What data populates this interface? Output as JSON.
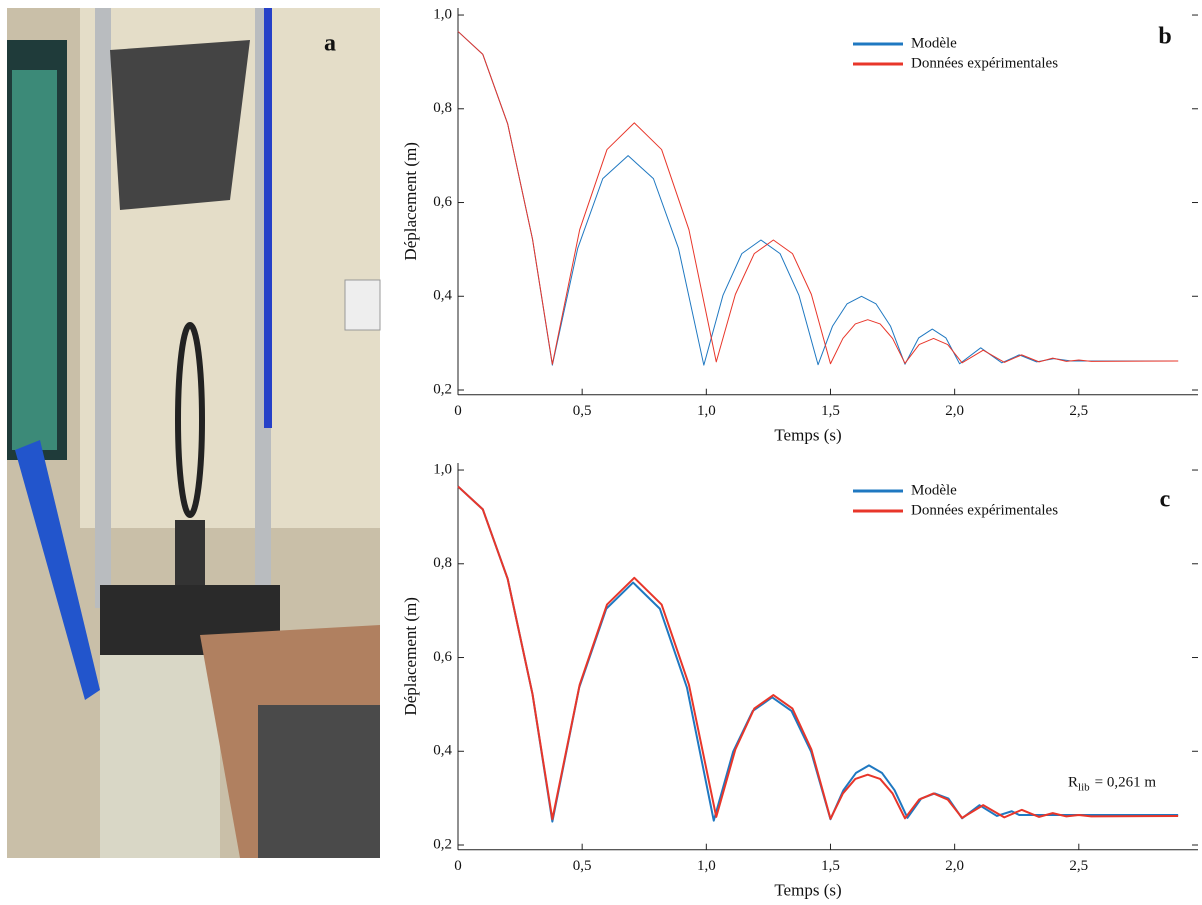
{
  "photo": {
    "label": "a"
  },
  "chart_data": [
    {
      "type": "line",
      "panel_label": "b",
      "x_label": "Temps (s)",
      "y_label": "Déplacement (m)",
      "xlim": [
        0,
        2.98
      ],
      "ylim": [
        0.19,
        1.015
      ],
      "xticks": [
        0,
        {
          "value": 0.5,
          "label": "0,5"
        },
        {
          "value": 1.0,
          "label": "1,0"
        },
        {
          "value": 1.5,
          "label": "1,5"
        },
        {
          "value": 2.0,
          "label": "2,0"
        },
        {
          "value": 2.5,
          "label": "2,5"
        }
      ],
      "yticks": [
        {
          "value": 0.2,
          "label": "0,2"
        },
        {
          "value": 0.4,
          "label": "0,4"
        },
        {
          "value": 0.6,
          "label": "0,6"
        },
        {
          "value": 0.8,
          "label": "0,8"
        },
        {
          "value": 1.0,
          "label": "1,0"
        }
      ],
      "legend": "upper right",
      "line_width": 1,
      "series": [
        {
          "name": "Modèle",
          "color": "#1f78c1",
          "x": [
            0,
            0.1,
            0.2,
            0.3,
            0.38,
            0.482,
            0.583,
            0.685,
            0.787,
            0.888,
            0.99,
            1.067,
            1.143,
            1.22,
            1.297,
            1.373,
            1.45,
            1.508,
            1.567,
            1.625,
            1.683,
            1.742,
            1.8,
            1.855,
            1.91,
            1.965,
            2.02,
            2.105,
            2.19,
            2.26,
            2.33,
            2.4,
            2.47,
            2.9
          ],
          "values": [
            0.965,
            0.916,
            0.768,
            0.522,
            0.253,
            0.502,
            0.651,
            0.7,
            0.651,
            0.502,
            0.253,
            0.402,
            0.491,
            0.52,
            0.491,
            0.402,
            0.254,
            0.336,
            0.384,
            0.4,
            0.384,
            0.336,
            0.255,
            0.311,
            0.33,
            0.311,
            0.256,
            0.29,
            0.258,
            0.275,
            0.26,
            0.267,
            0.262,
            0.262
          ]
        },
        {
          "name": "Données expérimentales",
          "color": "#e8362a",
          "x": [
            0,
            0.1,
            0.2,
            0.3,
            0.38,
            0.49,
            0.6,
            0.71,
            0.82,
            0.93,
            1.04,
            1.117,
            1.193,
            1.27,
            1.347,
            1.423,
            1.5,
            1.55,
            1.6,
            1.65,
            1.7,
            1.75,
            1.8,
            1.857,
            1.915,
            1.972,
            2.03,
            2.115,
            2.2,
            2.27,
            2.34,
            2.395,
            2.45,
            2.5,
            2.55,
            2.9
          ],
          "values": [
            0.965,
            0.916,
            0.768,
            0.522,
            0.255,
            0.542,
            0.713,
            0.77,
            0.713,
            0.542,
            0.26,
            0.404,
            0.491,
            0.52,
            0.491,
            0.404,
            0.256,
            0.31,
            0.341,
            0.35,
            0.341,
            0.31,
            0.257,
            0.297,
            0.31,
            0.297,
            0.258,
            0.285,
            0.259,
            0.275,
            0.26,
            0.268,
            0.261,
            0.264,
            0.261,
            0.262
          ]
        }
      ]
    },
    {
      "type": "line",
      "panel_label": "c",
      "x_label": "Temps (s)",
      "y_label": "Déplacement (m)",
      "xlim": [
        0,
        2.98
      ],
      "ylim": [
        0.19,
        1.015
      ],
      "xticks": [
        0,
        {
          "value": 0.5,
          "label": "0,5"
        },
        {
          "value": 1.0,
          "label": "1,0"
        },
        {
          "value": 1.5,
          "label": "1,5"
        },
        {
          "value": 2.0,
          "label": "2,0"
        },
        {
          "value": 2.5,
          "label": "2,5"
        }
      ],
      "yticks": [
        {
          "value": 0.2,
          "label": "0,2"
        },
        {
          "value": 0.4,
          "label": "0,4"
        },
        {
          "value": 0.6,
          "label": "0,6"
        },
        {
          "value": 0.8,
          "label": "0,8"
        },
        {
          "value": 1.0,
          "label": "1,0"
        }
      ],
      "legend": "upper right",
      "line_width": 2,
      "annotation": {
        "symbol": "R",
        "subscript": "lib",
        "text": "= 0,261 m"
      },
      "series": [
        {
          "name": "Modèle",
          "color": "#1f78c1",
          "x": [
            0,
            0.1,
            0.2,
            0.3,
            0.38,
            0.488,
            0.597,
            0.705,
            0.813,
            0.922,
            1.03,
            1.108,
            1.187,
            1.265,
            1.343,
            1.422,
            1.5,
            1.552,
            1.603,
            1.655,
            1.707,
            1.758,
            1.81,
            1.865,
            1.92,
            1.975,
            2.03,
            2.1,
            2.17,
            2.23,
            2.26,
            2.9
          ],
          "values": [
            0.965,
            0.916,
            0.768,
            0.522,
            0.25,
            0.536,
            0.704,
            0.76,
            0.704,
            0.536,
            0.252,
            0.399,
            0.486,
            0.515,
            0.486,
            0.399,
            0.255,
            0.317,
            0.354,
            0.37,
            0.354,
            0.317,
            0.258,
            0.299,
            0.31,
            0.299,
            0.257,
            0.285,
            0.262,
            0.272,
            0.264,
            0.264
          ]
        },
        {
          "name": "Données expérimentales",
          "color": "#e8362a",
          "x": [
            0,
            0.1,
            0.2,
            0.3,
            0.38,
            0.49,
            0.6,
            0.71,
            0.82,
            0.93,
            1.04,
            1.117,
            1.193,
            1.27,
            1.347,
            1.423,
            1.5,
            1.55,
            1.6,
            1.65,
            1.7,
            1.75,
            1.8,
            1.857,
            1.915,
            1.972,
            2.03,
            2.115,
            2.2,
            2.27,
            2.34,
            2.395,
            2.45,
            2.5,
            2.55,
            2.9
          ],
          "values": [
            0.965,
            0.916,
            0.768,
            0.522,
            0.255,
            0.542,
            0.713,
            0.77,
            0.713,
            0.542,
            0.26,
            0.404,
            0.491,
            0.52,
            0.491,
            0.404,
            0.256,
            0.31,
            0.341,
            0.35,
            0.341,
            0.31,
            0.257,
            0.297,
            0.31,
            0.297,
            0.258,
            0.285,
            0.259,
            0.275,
            0.26,
            0.268,
            0.261,
            0.264,
            0.261,
            0.262
          ]
        }
      ]
    }
  ]
}
